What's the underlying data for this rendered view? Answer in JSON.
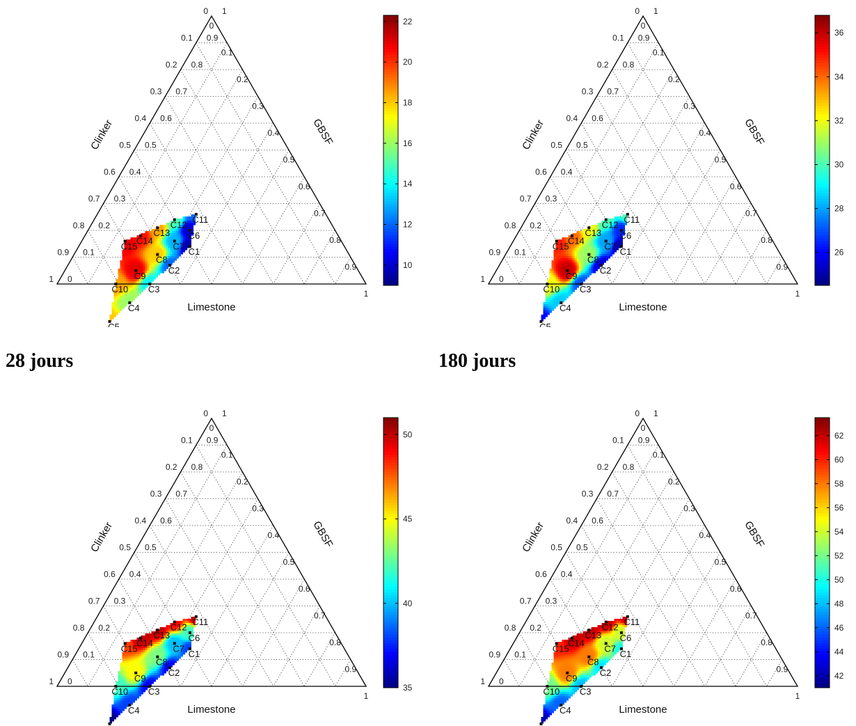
{
  "captions": [
    "28 jours",
    "180 jours"
  ],
  "chart_data": [
    {
      "type": "ternary-heatmap",
      "axes": {
        "bottom": "Limestone",
        "left": "Clinker",
        "right": "GBSF"
      },
      "ticks": [
        "0",
        "0.1",
        "0.2",
        "0.3",
        "0.4",
        "0.5",
        "0.6",
        "0.7",
        "0.8",
        "0.9",
        "1"
      ],
      "colorbar": {
        "min": 9,
        "max": 22.3,
        "ticks": [
          10,
          12,
          14,
          16,
          18,
          20,
          22
        ]
      },
      "points": [
        {
          "label": "C1",
          "clinker": 0.5,
          "limestone": 0.36,
          "value": 9.5
        },
        {
          "label": "C2",
          "clinker": 0.6,
          "limestone": 0.33,
          "value": 12
        },
        {
          "label": "C3",
          "clinker": 0.7,
          "limestone": 0.3,
          "value": 14
        },
        {
          "label": "C4",
          "clinker": 0.8,
          "limestone": 0.27,
          "value": 16
        },
        {
          "label": "C5",
          "clinker": 0.9,
          "limestone": 0.24,
          "value": 18
        },
        {
          "label": "C6",
          "clinker": 0.47,
          "limestone": 0.33,
          "value": 10
        },
        {
          "label": "C7",
          "clinker": 0.54,
          "limestone": 0.3,
          "value": 13
        },
        {
          "label": "C8",
          "clinker": 0.62,
          "limestone": 0.27,
          "value": 18
        },
        {
          "label": "C9",
          "clinker": 0.72,
          "limestone": 0.23,
          "value": 21
        },
        {
          "label": "C10",
          "clinker": 0.81,
          "limestone": 0.19,
          "value": 18.5
        },
        {
          "label": "C11",
          "clinker": 0.42,
          "limestone": 0.32,
          "value": 12
        },
        {
          "label": "C12",
          "clinker": 0.5,
          "limestone": 0.26,
          "value": 15
        },
        {
          "label": "C13",
          "clinker": 0.57,
          "limestone": 0.22,
          "value": 18.5
        },
        {
          "label": "C14",
          "clinker": 0.64,
          "limestone": 0.18,
          "value": 20.5
        },
        {
          "label": "C15",
          "clinker": 0.7,
          "limestone": 0.14,
          "value": 21
        }
      ]
    },
    {
      "type": "ternary-heatmap",
      "axes": {
        "bottom": "Limestone",
        "left": "Clinker",
        "right": "GBSF"
      },
      "ticks": [
        "0",
        "0.1",
        "0.2",
        "0.3",
        "0.4",
        "0.5",
        "0.6",
        "0.7",
        "0.8",
        "0.9",
        "1"
      ],
      "colorbar": {
        "min": 24.5,
        "max": 36.8,
        "ticks": [
          26,
          28,
          30,
          32,
          34,
          36
        ]
      },
      "points": [
        {
          "label": "C1",
          "clinker": 0.5,
          "limestone": 0.36,
          "value": 25
        },
        {
          "label": "C2",
          "clinker": 0.6,
          "limestone": 0.33,
          "value": 25.5
        },
        {
          "label": "C3",
          "clinker": 0.7,
          "limestone": 0.3,
          "value": 27
        },
        {
          "label": "C4",
          "clinker": 0.8,
          "limestone": 0.27,
          "value": 28.5
        },
        {
          "label": "C5",
          "clinker": 0.9,
          "limestone": 0.24,
          "value": 26
        },
        {
          "label": "C6",
          "clinker": 0.47,
          "limestone": 0.33,
          "value": 26.5
        },
        {
          "label": "C7",
          "clinker": 0.54,
          "limestone": 0.3,
          "value": 28
        },
        {
          "label": "C8",
          "clinker": 0.62,
          "limestone": 0.27,
          "value": 31
        },
        {
          "label": "C9",
          "clinker": 0.72,
          "limestone": 0.23,
          "value": 36
        },
        {
          "label": "C10",
          "clinker": 0.81,
          "limestone": 0.19,
          "value": 32
        },
        {
          "label": "C11",
          "clinker": 0.42,
          "limestone": 0.32,
          "value": 30
        },
        {
          "label": "C12",
          "clinker": 0.5,
          "limestone": 0.26,
          "value": 30
        },
        {
          "label": "C13",
          "clinker": 0.57,
          "limestone": 0.22,
          "value": 32
        },
        {
          "label": "C14",
          "clinker": 0.64,
          "limestone": 0.18,
          "value": 34
        },
        {
          "label": "C15",
          "clinker": 0.7,
          "limestone": 0.14,
          "value": 35
        }
      ]
    },
    {
      "type": "ternary-heatmap",
      "axes": {
        "bottom": "Limestone",
        "left": "Clinker",
        "right": "GBSF"
      },
      "ticks": [
        "0",
        "0.1",
        "0.2",
        "0.3",
        "0.4",
        "0.5",
        "0.6",
        "0.7",
        "0.8",
        "0.9",
        "1"
      ],
      "colorbar": {
        "min": 35,
        "max": 51,
        "ticks": [
          35,
          40,
          45,
          50
        ]
      },
      "points": [
        {
          "label": "C1",
          "clinker": 0.5,
          "limestone": 0.36,
          "value": 38
        },
        {
          "label": "C2",
          "clinker": 0.6,
          "limestone": 0.33,
          "value": 37
        },
        {
          "label": "C3",
          "clinker": 0.7,
          "limestone": 0.3,
          "value": 37
        },
        {
          "label": "C4",
          "clinker": 0.8,
          "limestone": 0.27,
          "value": 38
        },
        {
          "label": "C5",
          "clinker": 0.9,
          "limestone": 0.24,
          "value": 35
        },
        {
          "label": "C6",
          "clinker": 0.47,
          "limestone": 0.33,
          "value": 42
        },
        {
          "label": "C7",
          "clinker": 0.54,
          "limestone": 0.3,
          "value": 40
        },
        {
          "label": "C8",
          "clinker": 0.62,
          "limestone": 0.27,
          "value": 43
        },
        {
          "label": "C9",
          "clinker": 0.72,
          "limestone": 0.23,
          "value": 45
        },
        {
          "label": "C10",
          "clinker": 0.81,
          "limestone": 0.19,
          "value": 42
        },
        {
          "label": "C11",
          "clinker": 0.42,
          "limestone": 0.32,
          "value": 50
        },
        {
          "label": "C12",
          "clinker": 0.5,
          "limestone": 0.26,
          "value": 49
        },
        {
          "label": "C13",
          "clinker": 0.57,
          "limestone": 0.22,
          "value": 50
        },
        {
          "label": "C14",
          "clinker": 0.64,
          "limestone": 0.18,
          "value": 50
        },
        {
          "label": "C15",
          "clinker": 0.7,
          "limestone": 0.14,
          "value": 48
        }
      ]
    },
    {
      "type": "ternary-heatmap",
      "axes": {
        "bottom": "Limestone",
        "left": "Clinker",
        "right": "GBSF"
      },
      "ticks": [
        "0",
        "0.1",
        "0.2",
        "0.3",
        "0.4",
        "0.5",
        "0.6",
        "0.7",
        "0.8",
        "0.9",
        "1"
      ],
      "colorbar": {
        "min": 41,
        "max": 63.5,
        "ticks": [
          42,
          44,
          46,
          48,
          50,
          52,
          54,
          56,
          58,
          60,
          62
        ]
      },
      "points": [
        {
          "label": "C1",
          "clinker": 0.5,
          "limestone": 0.36,
          "value": 50
        },
        {
          "label": "C2",
          "clinker": 0.6,
          "limestone": 0.33,
          "value": 49
        },
        {
          "label": "C3",
          "clinker": 0.7,
          "limestone": 0.3,
          "value": 48
        },
        {
          "label": "C4",
          "clinker": 0.8,
          "limestone": 0.27,
          "value": 46
        },
        {
          "label": "C5",
          "clinker": 0.9,
          "limestone": 0.24,
          "value": 42
        },
        {
          "label": "C6",
          "clinker": 0.47,
          "limestone": 0.33,
          "value": 54
        },
        {
          "label": "C7",
          "clinker": 0.54,
          "limestone": 0.3,
          "value": 54
        },
        {
          "label": "C8",
          "clinker": 0.62,
          "limestone": 0.27,
          "value": 58
        },
        {
          "label": "C9",
          "clinker": 0.72,
          "limestone": 0.23,
          "value": 58
        },
        {
          "label": "C10",
          "clinker": 0.81,
          "limestone": 0.19,
          "value": 52
        },
        {
          "label": "C11",
          "clinker": 0.42,
          "limestone": 0.32,
          "value": 62
        },
        {
          "label": "C12",
          "clinker": 0.5,
          "limestone": 0.26,
          "value": 62
        },
        {
          "label": "C13",
          "clinker": 0.57,
          "limestone": 0.22,
          "value": 62
        },
        {
          "label": "C14",
          "clinker": 0.64,
          "limestone": 0.18,
          "value": 62
        },
        {
          "label": "C15",
          "clinker": 0.7,
          "limestone": 0.14,
          "value": 60
        }
      ]
    }
  ]
}
